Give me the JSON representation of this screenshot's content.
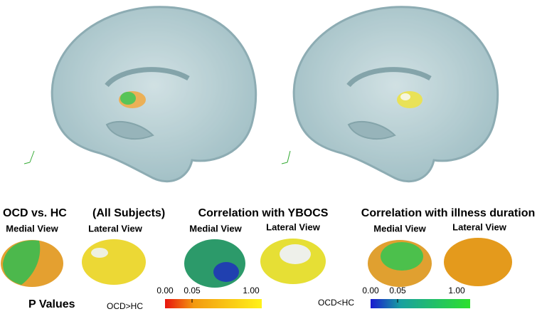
{
  "groups": [
    {
      "title": [
        "OCD vs. HC",
        "(All Subjects)"
      ],
      "views": [
        "Medial View",
        "Lateral View"
      ]
    },
    {
      "title": [
        "Correlation with YBOCS"
      ],
      "views": [
        "Medial View",
        "Lateral View"
      ]
    },
    {
      "title": [
        "Correlation with illness duration"
      ],
      "views": [
        "Medial View",
        "Lateral View"
      ]
    }
  ],
  "legend": {
    "title": "P Values",
    "bars": [
      {
        "label": "OCD>HC",
        "ticks": [
          "0.00",
          "0.05",
          "1.00"
        ]
      },
      {
        "label": "OCD<HC",
        "ticks": [
          "0.00",
          "0.05",
          "1.00"
        ]
      }
    ]
  }
}
